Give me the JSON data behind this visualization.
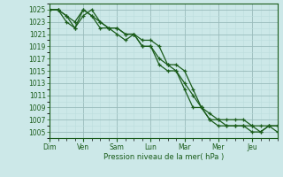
{
  "title": "Pression niveau de la mer( hPa )",
  "ylabel_values": [
    1005,
    1007,
    1009,
    1011,
    1013,
    1015,
    1017,
    1019,
    1021,
    1023,
    1025
  ],
  "ylim": [
    1004.0,
    1026.0
  ],
  "day_labels": [
    "Dim",
    "Ven",
    "Sam",
    "Lun",
    "Mar",
    "Mer",
    "Jeu"
  ],
  "day_positions": [
    0,
    4,
    8,
    12,
    16,
    20,
    24
  ],
  "xlim": [
    0,
    27
  ],
  "bg_color": "#cce8e8",
  "grid_major_color": "#99bbbb",
  "grid_minor_color": "#bbdddd",
  "line_color": "#1a5c1a",
  "line1_y": [
    1025,
    1025,
    1024,
    1022,
    1025,
    1024,
    1022,
    1022,
    1021,
    1020,
    1021,
    1019,
    1019,
    1017,
    1016,
    1015,
    1013,
    1011,
    1009,
    1008,
    1007,
    1006,
    1006,
    1006,
    1006,
    1005,
    1006,
    1006
  ],
  "line2_y": [
    1025,
    1025,
    1023,
    1022,
    1024,
    1025,
    1023,
    1022,
    1022,
    1021,
    1021,
    1019,
    1019,
    1016,
    1015,
    1015,
    1012,
    1009,
    1009,
    1007,
    1006,
    1006,
    1006,
    1006,
    1005,
    1005,
    1006,
    1005
  ],
  "line3_y": [
    1025,
    1025,
    1024,
    1023,
    1025,
    1024,
    1023,
    1022,
    1022,
    1021,
    1021,
    1020,
    1020,
    1019,
    1016,
    1016,
    1015,
    1012,
    1009,
    1007,
    1007,
    1007,
    1007,
    1007,
    1006,
    1006,
    1006,
    1006
  ],
  "title_fontsize": 6,
  "tick_fontsize": 5.5,
  "marker_size": 3.5,
  "linewidth": 0.9
}
